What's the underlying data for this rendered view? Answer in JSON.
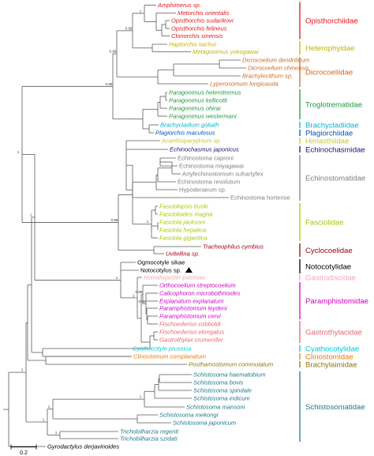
{
  "taxa": [
    {
      "label": "Amphimerus sp.",
      "color": "#e3151b"
    },
    {
      "label": "Metorchis orientalis",
      "color": "#e3151b"
    },
    {
      "label": "Opisthorchis sudarikovi",
      "color": "#e3151b"
    },
    {
      "label": "Opisthorchis felineus",
      "color": "#e3151b"
    },
    {
      "label": "Clonorchis sinensis",
      "color": "#e3151b"
    },
    {
      "label": "Haplorchis taichui",
      "color": "#c8b400"
    },
    {
      "label": "Metagonimus yokogawai",
      "color": "#c8b400"
    },
    {
      "label": "Dicrocoelium dendriticum",
      "color": "#d2691e"
    },
    {
      "label": "Dicrocoelium chinensis",
      "color": "#d2691e"
    },
    {
      "label": "Brachylecithum sp.",
      "color": "#d2691e"
    },
    {
      "label": "Lyperosomum longicauda",
      "color": "#d2691e"
    },
    {
      "label": "Paragonimus heterotremus",
      "color": "#1e9a3c"
    },
    {
      "label": "Paragonimus kellicotti",
      "color": "#1e9a3c"
    },
    {
      "label": "Paragonimus ohirai",
      "color": "#1e9a3c"
    },
    {
      "label": "Paragonimus westermani",
      "color": "#1e9a3c"
    },
    {
      "label": "Brachycladium goliath",
      "color": "#00b4d8"
    },
    {
      "label": "Plagiorchis maculosus",
      "color": "#0050c8"
    },
    {
      "label": "Acanthoparyphium sp.",
      "color": "#c8c832"
    },
    {
      "label": "Echinochasmus japonicus",
      "color": "#141478"
    },
    {
      "label": "Echinostoma caproni",
      "color": "#808080"
    },
    {
      "label": "Echinostoma miyagawai",
      "color": "#808080"
    },
    {
      "label": "Artyfechinostomum sufrartyfex",
      "color": "#808080"
    },
    {
      "label": "Echinostoma revolutum",
      "color": "#808080"
    },
    {
      "label": "Hypoderaeum sp.",
      "color": "#808080"
    },
    {
      "label": "Echinostoma hortense",
      "color": "#808080"
    },
    {
      "label": "Fasciolopsis buski",
      "color": "#a6c80a"
    },
    {
      "label": "Fascioloides magna",
      "color": "#a6c80a"
    },
    {
      "label": "Fasciola jacksoni",
      "color": "#a6c80a"
    },
    {
      "label": "Fasciola hepatica",
      "color": "#a6c80a"
    },
    {
      "label": "Fasciola gigantica",
      "color": "#a6c80a"
    },
    {
      "label": "Tracheophilus cymbius",
      "color": "#a0001e"
    },
    {
      "label": "Uvitellina sp.",
      "color": "#a0001e"
    },
    {
      "label": "Ogmocotyle sikae",
      "color": "#000000"
    },
    {
      "label": "Notocotylus sp.",
      "color": "#000000"
    },
    {
      "label": "Homalogaster paloniae",
      "color": "#f4a6b4"
    },
    {
      "label": "Orthocoelium streptocoelium",
      "color": "#d200c8"
    },
    {
      "label": "Calicophoron microbothrioides",
      "color": "#d200c8"
    },
    {
      "label": "Explanatum explanatum",
      "color": "#d200c8"
    },
    {
      "label": "Paramphistomum leydeni",
      "color": "#d200c8"
    },
    {
      "label": "Paramphistomum cervi",
      "color": "#d200c8"
    },
    {
      "label": "Fischoederius cobboldi",
      "color": "#e86470"
    },
    {
      "label": "Fischoederius elongatus",
      "color": "#e86470"
    },
    {
      "label": "Gastrothylax crumenifer",
      "color": "#e86470"
    },
    {
      "label": "Cyathocotyle prussica",
      "color": "#00c8dc"
    },
    {
      "label": "Clinostomum complanatum",
      "color": "#f07800"
    },
    {
      "label": "Posthamostomum commutatum",
      "color": "#8c780a"
    },
    {
      "label": "Schistosoma haematobium",
      "color": "#1e7890"
    },
    {
      "label": "Schistosoma bovis",
      "color": "#1e7890"
    },
    {
      "label": "Schistosoma spindale",
      "color": "#1e7890"
    },
    {
      "label": "Schistosoma indicum",
      "color": "#1e7890"
    },
    {
      "label": "Schistosoma mansoni",
      "color": "#1e7890"
    },
    {
      "label": "Schistosoma mekongi",
      "color": "#1e7890"
    },
    {
      "label": "Schistosoma japonicum",
      "color": "#1e7890"
    },
    {
      "label": "Trichobilharzia regenti",
      "color": "#1e7890"
    },
    {
      "label": "Trichobilharzia szidati",
      "color": "#1e7890"
    },
    {
      "label": "Gyrodactylus derjavinoides",
      "color": "#000000"
    }
  ],
  "families": [
    {
      "name": "Opisthorchiidae",
      "color": "#e3151b"
    },
    {
      "name": "Heterophyidae",
      "color": "#c8b400"
    },
    {
      "name": "Dicrocoeliidae",
      "color": "#d2691e"
    },
    {
      "name": "Troglotrematidae",
      "color": "#1e9a3c"
    },
    {
      "name": "Brachycladiidae",
      "color": "#00b4d8"
    },
    {
      "name": "Plagiorchiidae",
      "color": "#0050c8"
    },
    {
      "name": "Himasthlidae",
      "color": "#c8c832"
    },
    {
      "name": "Echinochasmidae",
      "color": "#141478"
    },
    {
      "name": "Echinostomatidae",
      "color": "#808080"
    },
    {
      "name": "Fasciolidae",
      "color": "#a6c80a"
    },
    {
      "name": "Cyclocoelidae",
      "color": "#a0001e"
    },
    {
      "name": "Notocotylidae",
      "color": "#000000"
    },
    {
      "name": "Gastrodiscidae",
      "color": "#f4a6b4"
    },
    {
      "name": "Paramphistomidae",
      "color": "#d200c8"
    },
    {
      "name": "Gastrothylacidae",
      "color": "#e86470"
    },
    {
      "name": "Cyathocotylidae",
      "color": "#00c8dc"
    },
    {
      "name": "Clinostomidae",
      "color": "#f07800"
    },
    {
      "name": "Brachylaimidae",
      "color": "#8c780a"
    },
    {
      "name": "Schistosomatidae",
      "color": "#1e7890"
    }
  ],
  "branch_color": "#5a5a5a",
  "scale_label": "0.2",
  "highlight_marker": "triangle-marker"
}
